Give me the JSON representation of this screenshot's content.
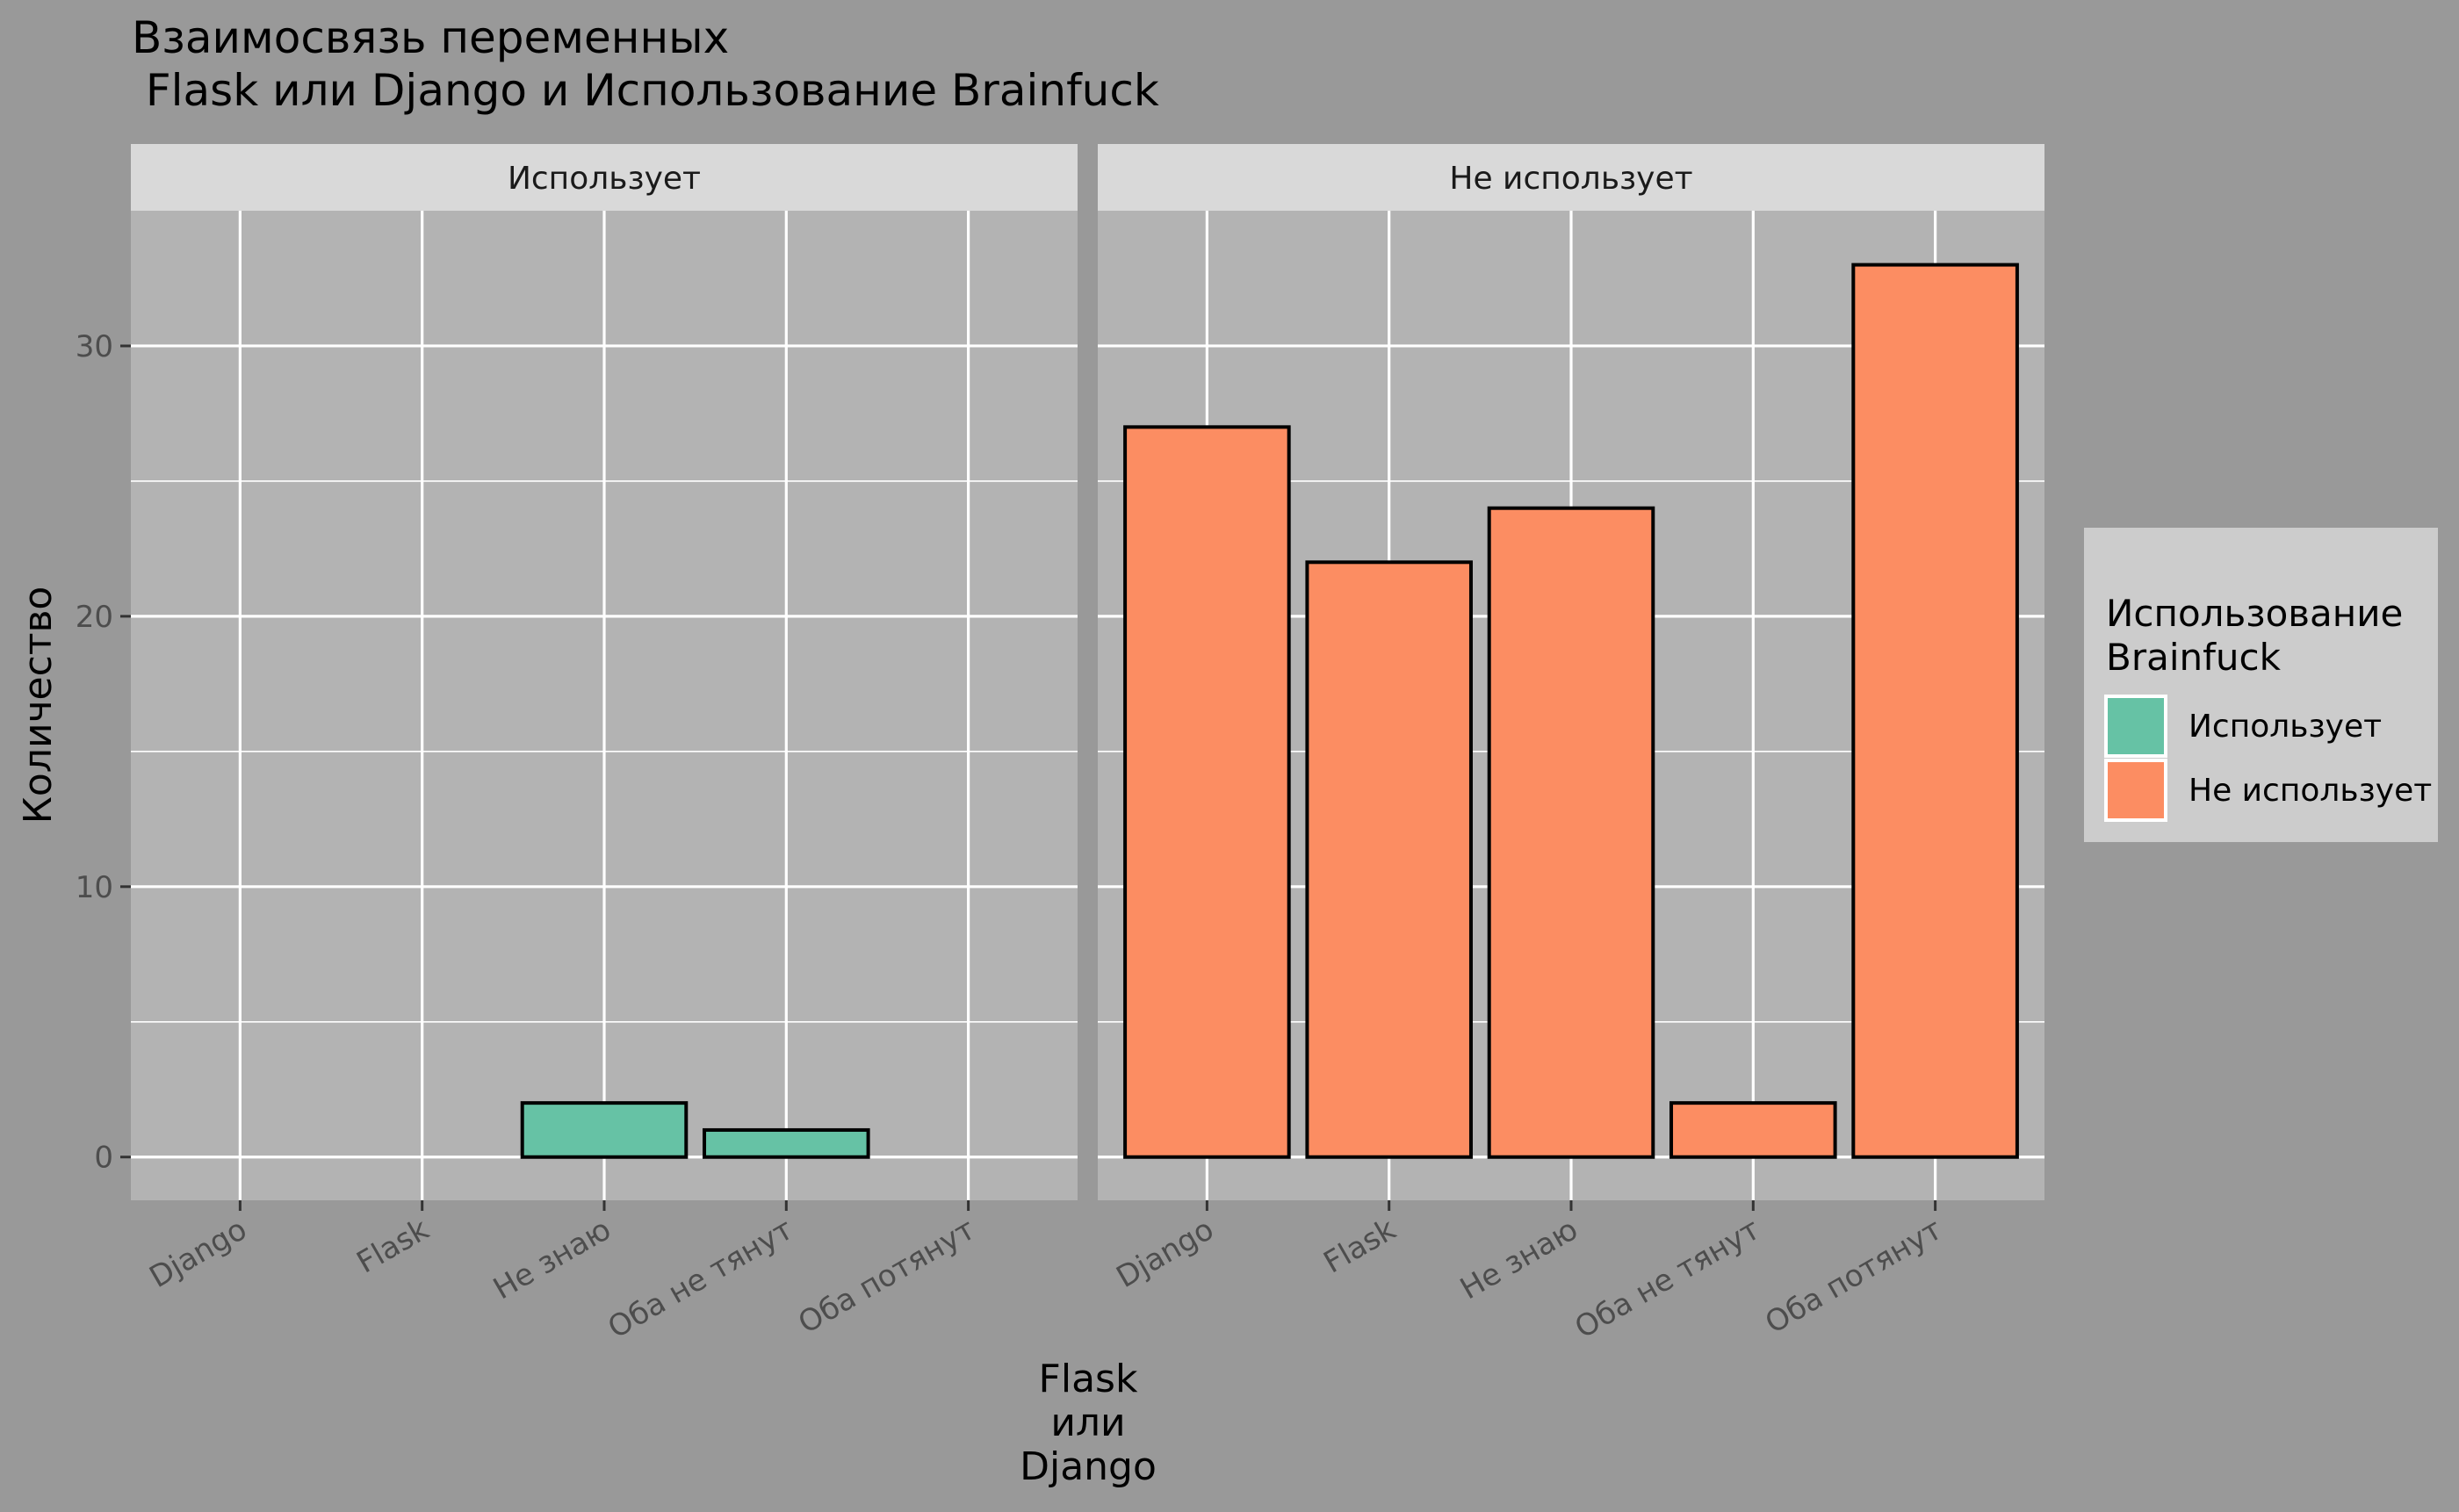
{
  "chart_data": {
    "type": "bar",
    "title": "Взаимосвязь переменных\n Flask или Django и Использование Brainfuck",
    "xlabel": "Flask\nили\nDjango",
    "ylabel": "Количество",
    "ylim": [
      -1.6,
      35.0
    ],
    "yticks": [
      0,
      10,
      20,
      30
    ],
    "grid": true,
    "categories": [
      "Django",
      "Flask",
      "Не знаю",
      "Оба не тянут",
      "Оба потянут"
    ],
    "facets": [
      "Использует",
      "Не использует"
    ],
    "series": [
      {
        "name": "Использует",
        "facet": "Использует",
        "values": [
          0,
          0,
          2,
          1,
          0
        ]
      },
      {
        "name": "Не использует",
        "facet": "Не использует",
        "values": [
          27,
          22,
          24,
          2,
          33
        ]
      }
    ],
    "legend": {
      "title": "Использование\nBrainfuck",
      "placement": "right",
      "entries": [
        "Использует",
        "Не использует"
      ]
    },
    "colors": {
      "Использует": "#66C2A5",
      "Не использует": "#FC8D62",
      "panel": "#B3B3B3",
      "strip": "#D9D9D9",
      "background": "#999999",
      "legend_bg": "#CCCCCC",
      "grid": "#FFFFFF"
    }
  }
}
